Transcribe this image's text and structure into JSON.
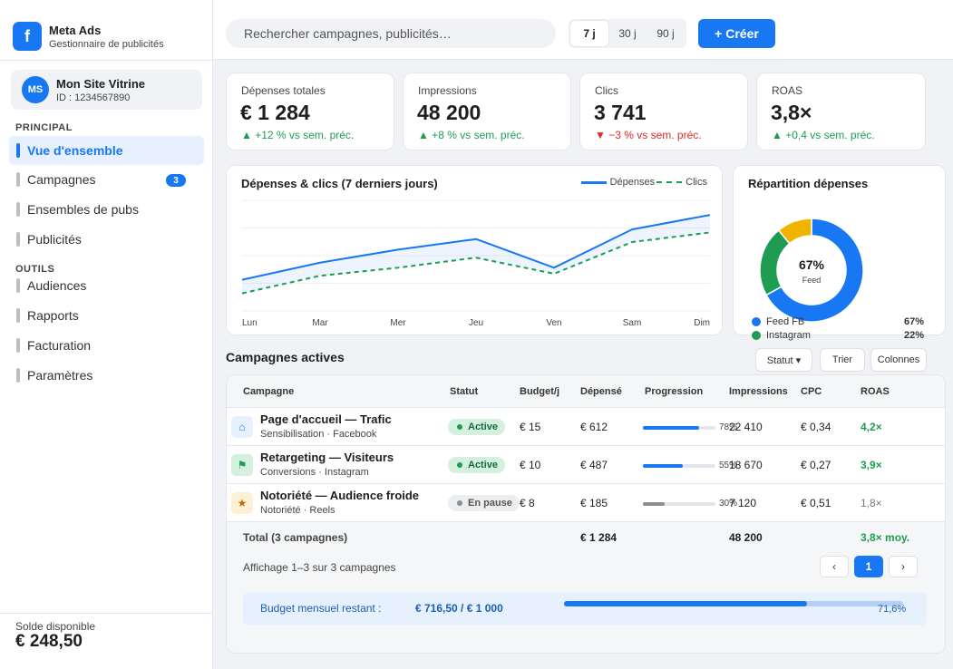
{
  "brand": {
    "title": "Meta Ads",
    "subtitle": "Gestionnaire de publicités",
    "logo_letter": "f"
  },
  "account": {
    "initials": "MS",
    "name": "Mon Site Vitrine",
    "id": "ID : 1234567890"
  },
  "nav": {
    "principal_label": "PRINCIPAL",
    "outils_label": "OUTILS",
    "principal": [
      {
        "label": "Vue d'ensemble",
        "active": true
      },
      {
        "label": "Campagnes",
        "badge": "3"
      },
      {
        "label": "Ensembles de pubs"
      },
      {
        "label": "Publicités"
      }
    ],
    "outils": [
      {
        "label": "Audiences"
      },
      {
        "label": "Rapports"
      },
      {
        "label": "Facturation"
      },
      {
        "label": "Paramètres"
      }
    ]
  },
  "balance": {
    "label": "Solde disponible",
    "value": "€ 248,50"
  },
  "topbar": {
    "search_placeholder": "Rechercher campagnes, publicités…",
    "ranges": [
      "7 j",
      "30 j",
      "90 j"
    ],
    "active_range": "7 j",
    "create_label": "+ Créer"
  },
  "kpis": [
    {
      "label": "Dépenses totales",
      "value": "€ 1 284",
      "delta": "▲ +12 % vs sem. préc.",
      "trend": "up"
    },
    {
      "label": "Impressions",
      "value": "48 200",
      "delta": "▲ +8 % vs sem. préc.",
      "trend": "up"
    },
    {
      "label": "Clics",
      "value": "3 741",
      "delta": "▼ −3 % vs sem. préc.",
      "trend": "down"
    },
    {
      "label": "ROAS",
      "value": "3,8×",
      "delta": "▲ +0,4 vs sem. préc.",
      "trend": "up"
    }
  ],
  "colors": {
    "accent": "#1877f2",
    "green": "#1e9c52",
    "orange": "#f0b400",
    "red": "#e0282b"
  },
  "chart_data": [
    {
      "type": "line",
      "title": "Dépenses & clics (7 derniers jours)",
      "categories": [
        "Lun",
        "Mar",
        "Mer",
        "Jeu",
        "Ven",
        "Sam",
        "Dim"
      ],
      "series": [
        {
          "name": "Dépenses",
          "values": [
            62,
            96,
            122,
            143,
            86,
            162,
            191
          ],
          "style": "solid",
          "color": "#1877f2"
        },
        {
          "name": "Clics",
          "values": [
            35,
            70,
            86,
            106,
            74,
            137,
            156
          ],
          "style": "dashed",
          "color": "#1e9c52"
        }
      ],
      "ylim": [
        0,
        220
      ],
      "grid": true,
      "legend": "top-right"
    },
    {
      "type": "pie",
      "title": "Répartition dépenses",
      "center_value": "67%",
      "center_label": "Feed",
      "slices": [
        {
          "name": "Feed FB",
          "value": 67,
          "label": "67%",
          "color": "#1877f2"
        },
        {
          "name": "Instagram",
          "value": 22,
          "label": "22%",
          "color": "#1e9c52"
        },
        {
          "name": "",
          "value": 11,
          "color": "#f0b400"
        }
      ]
    }
  ],
  "campaigns": {
    "title": "Campagnes actives",
    "buttons": {
      "status": "Statut ▾",
      "sort": "Trier",
      "columns": "Colonnes"
    },
    "headers": [
      "Campagne",
      "Statut",
      "Budget/j",
      "Dépensé",
      "Progression",
      "Impressions",
      "CPC",
      "ROAS"
    ],
    "rows": [
      {
        "icon": "home-icon",
        "icon_glyph": "⌂",
        "icon_color": "#1877f2",
        "icon_bg": "#e7f0fd",
        "name": "Page d'accueil — Trafic",
        "sub": "Sensibilisation · Facebook",
        "status": "Active",
        "budget": "€ 15",
        "spent": "€ 612",
        "progress": 78,
        "progress_label": "78%",
        "impressions": "22 410",
        "cpc": "€ 0,34",
        "roas": "4,2×",
        "roas_good": true
      },
      {
        "icon": "flag-icon",
        "icon_glyph": "⚑",
        "icon_color": "#1e9c52",
        "icon_bg": "#d4f0de",
        "name": "Retargeting — Visiteurs",
        "sub": "Conversions · Instagram",
        "status": "Active",
        "budget": "€ 10",
        "spent": "€ 487",
        "progress": 55,
        "progress_label": "55%",
        "impressions": "18 670",
        "cpc": "€ 0,27",
        "roas": "3,9×",
        "roas_good": true
      },
      {
        "icon": "star-icon",
        "icon_glyph": "★",
        "icon_color": "#b86e00",
        "icon_bg": "#fdf0d6",
        "name": "Notoriété — Audience froide",
        "sub": "Notoriété · Reels",
        "status": "En pause",
        "budget": "€ 8",
        "spent": "€ 185",
        "progress": 30,
        "progress_label": "30%",
        "impressions": "7 120",
        "cpc": "€ 0,51",
        "roas": "1,8×",
        "roas_good": false
      }
    ],
    "total": {
      "label": "Total (3 campagnes)",
      "spent": "€ 1 284",
      "impressions": "48 200",
      "roas": "3,8× moy."
    },
    "paging": {
      "text": "Affichage 1–3 sur 3 campagnes",
      "prev": "‹",
      "page": "1",
      "next": "›"
    },
    "budget": {
      "label": "Budget mensuel restant :",
      "value": "€ 716,50 / € 1 000",
      "pct_label": "71,6%",
      "pct": 71.6
    }
  }
}
